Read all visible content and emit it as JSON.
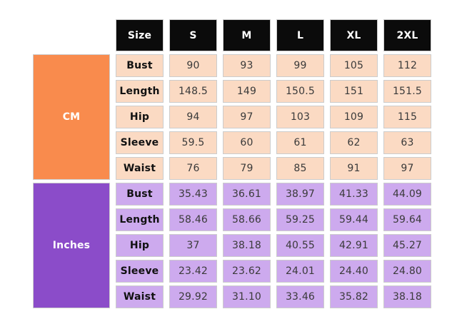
{
  "chart_data": {
    "type": "table",
    "header": [
      "Size",
      "S",
      "M",
      "L",
      "XL",
      "2XL"
    ],
    "sections": [
      {
        "unit": "CM",
        "rows": [
          {
            "label": "Bust",
            "values": [
              "90",
              "93",
              "99",
              "105",
              "112"
            ]
          },
          {
            "label": "Length",
            "values": [
              "148.5",
              "149",
              "150.5",
              "151",
              "151.5"
            ]
          },
          {
            "label": "Hip",
            "values": [
              "94",
              "97",
              "103",
              "109",
              "115"
            ]
          },
          {
            "label": "Sleeve",
            "values": [
              "59.5",
              "60",
              "61",
              "62",
              "63"
            ]
          },
          {
            "label": "Waist",
            "values": [
              "76",
              "79",
              "85",
              "91",
              "97"
            ]
          }
        ]
      },
      {
        "unit": "Inches",
        "rows": [
          {
            "label": "Bust",
            "values": [
              "35.43",
              "36.61",
              "38.97",
              "41.33",
              "44.09"
            ]
          },
          {
            "label": "Length",
            "values": [
              "58.46",
              "58.66",
              "59.25",
              "59.44",
              "59.64"
            ]
          },
          {
            "label": "Hip",
            "values": [
              "37",
              "38.18",
              "40.55",
              "42.91",
              "45.27"
            ]
          },
          {
            "label": "Sleeve",
            "values": [
              "23.42",
              "23.62",
              "24.01",
              "24.40",
              "24.80"
            ]
          },
          {
            "label": "Waist",
            "values": [
              "29.92",
              "31.10",
              "33.46",
              "35.82",
              "38.18"
            ]
          }
        ]
      }
    ]
  },
  "colors": {
    "header_bg": "#0B0B0B",
    "header_text": "#FFFFFF",
    "cm_unit_bg": "#F98B4D",
    "cm_cell_bg": "#FBDAC3",
    "inches_unit_bg": "#8B4CC9",
    "inches_cell_bg": "#CDAAEE",
    "cell_border": "#CCCCCC",
    "label_text": "#111111",
    "value_text": "#3A3A3A"
  }
}
